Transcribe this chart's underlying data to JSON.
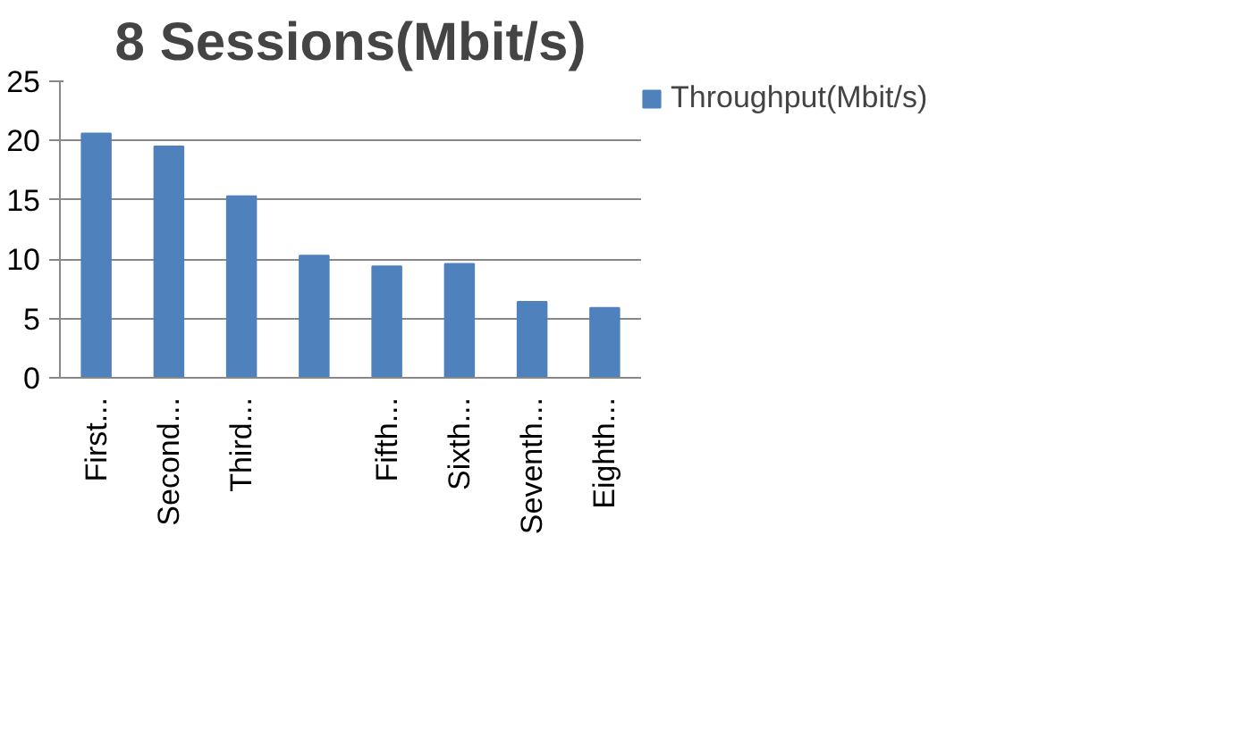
{
  "chart_data": {
    "type": "bar",
    "title": "8 Sessions(Mbit/s)",
    "categories": [
      "First...",
      "Second...",
      "Third...",
      null,
      "Fifth...",
      "Sixth...",
      "Seventh...",
      "Eighth..."
    ],
    "series": [
      {
        "name": "Throughput(Mbit/s)",
        "color": "#4f81bd",
        "values": [
          20.6,
          19.5,
          15.3,
          10.3,
          9.4,
          9.6,
          6.4,
          5.9
        ]
      }
    ],
    "ylim": [
      0,
      25
    ],
    "yticks": [
      0,
      5,
      10,
      15,
      20,
      25
    ],
    "grid": "y",
    "legend": "right"
  }
}
